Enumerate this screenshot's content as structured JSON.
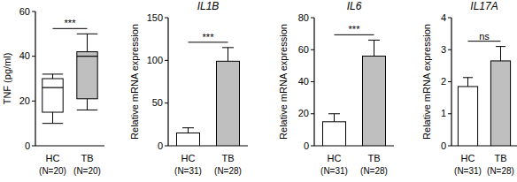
{
  "chart_data": [
    {
      "type": "box",
      "y_label": "TNF (pg/ml)",
      "categories": [
        "HC",
        "TB"
      ],
      "sample_sizes": [
        "(N=20)",
        "(N=20)"
      ],
      "boxes": [
        {
          "min": 10,
          "q1": 15,
          "median": 26,
          "q3": 30,
          "max": 32
        },
        {
          "min": 16,
          "q1": 21,
          "median": 40,
          "q3": 42,
          "max": 50
        }
      ],
      "colors": [
        "#ffffff",
        "#bfbfbf"
      ],
      "ylim": [
        0,
        60
      ],
      "yticks": [
        0,
        20,
        40,
        60
      ],
      "annotation": "***"
    },
    {
      "type": "bar",
      "title": "IL1B",
      "y_label": "Relative mRNA expression",
      "categories": [
        "HC",
        "TB"
      ],
      "sample_sizes": [
        "(N=31)",
        "(N=28)"
      ],
      "values": [
        15,
        99
      ],
      "errors": [
        6,
        16
      ],
      "colors": [
        "#ffffff",
        "#bfbfbf"
      ],
      "ylim": [
        0,
        150
      ],
      "yticks": [
        0,
        50,
        100,
        150
      ],
      "annotation": "***"
    },
    {
      "type": "bar",
      "title": "IL6",
      "y_label": "Relative mRNA expression",
      "categories": [
        "HC",
        "TB"
      ],
      "sample_sizes": [
        "(N=31)",
        "(N=28)"
      ],
      "values": [
        15,
        56
      ],
      "errors": [
        5,
        10
      ],
      "colors": [
        "#ffffff",
        "#bfbfbf"
      ],
      "ylim": [
        0,
        80
      ],
      "yticks": [
        0,
        20,
        40,
        60,
        80
      ],
      "annotation": "***"
    },
    {
      "type": "bar",
      "title": "IL17A",
      "y_label": "Relative mRNA expression",
      "categories": [
        "HC",
        "TB"
      ],
      "sample_sizes": [
        "(N=31)",
        "(N=28)"
      ],
      "values": [
        1.85,
        2.65
      ],
      "errors": [
        0.28,
        0.45
      ],
      "colors": [
        "#ffffff",
        "#bfbfbf"
      ],
      "ylim": [
        0,
        4
      ],
      "yticks": [
        0,
        1,
        2,
        3,
        4
      ],
      "annotation": "ns"
    }
  ]
}
